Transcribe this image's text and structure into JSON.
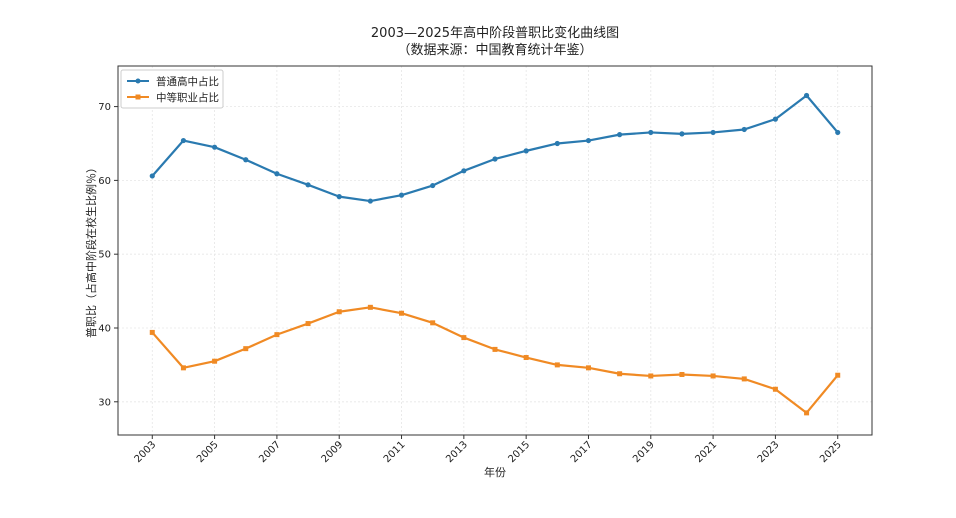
{
  "chart_data": {
    "type": "line",
    "title": "2003—2025年高中阶段普职比变化曲线图",
    "subtitle": "（数据来源：中国教育统计年鉴）",
    "xlabel": "年份",
    "ylabel": "普职比（占高中阶段在校生比例％）",
    "xlim": [
      2001.9,
      2026.1
    ],
    "ylim": [
      25.5,
      75.5
    ],
    "x_ticks": [
      "2003",
      "2005",
      "2007",
      "2009",
      "2011",
      "2013",
      "2015",
      "2017",
      "2019",
      "2021",
      "2023",
      "2025"
    ],
    "y_ticks": [
      "30",
      "40",
      "50",
      "60",
      "70"
    ],
    "grid": true,
    "legend_position": "top-left",
    "x": [
      2003,
      2004,
      2005,
      2006,
      2007,
      2008,
      2009,
      2010,
      2011,
      2012,
      2013,
      2014,
      2015,
      2016,
      2017,
      2018,
      2019,
      2020,
      2021,
      2022,
      2023,
      2024,
      2025
    ],
    "series": [
      {
        "name": "普通高中占比",
        "color": "#2a7ab0",
        "values": [
          60.6,
          65.4,
          64.5,
          62.8,
          60.9,
          59.4,
          57.8,
          57.2,
          58.0,
          59.3,
          61.3,
          62.9,
          64.0,
          65.0,
          65.4,
          66.2,
          66.5,
          66.3,
          66.5,
          66.9,
          68.3,
          71.5,
          66.5
        ]
      },
      {
        "name": "中等职业占比",
        "color": "#f08a24",
        "values": [
          39.4,
          34.6,
          35.5,
          37.2,
          39.1,
          40.6,
          42.2,
          42.8,
          42.0,
          40.7,
          38.7,
          37.1,
          36.0,
          35.0,
          34.6,
          33.8,
          33.5,
          33.7,
          33.5,
          33.1,
          31.7,
          28.5,
          33.6
        ]
      }
    ]
  }
}
